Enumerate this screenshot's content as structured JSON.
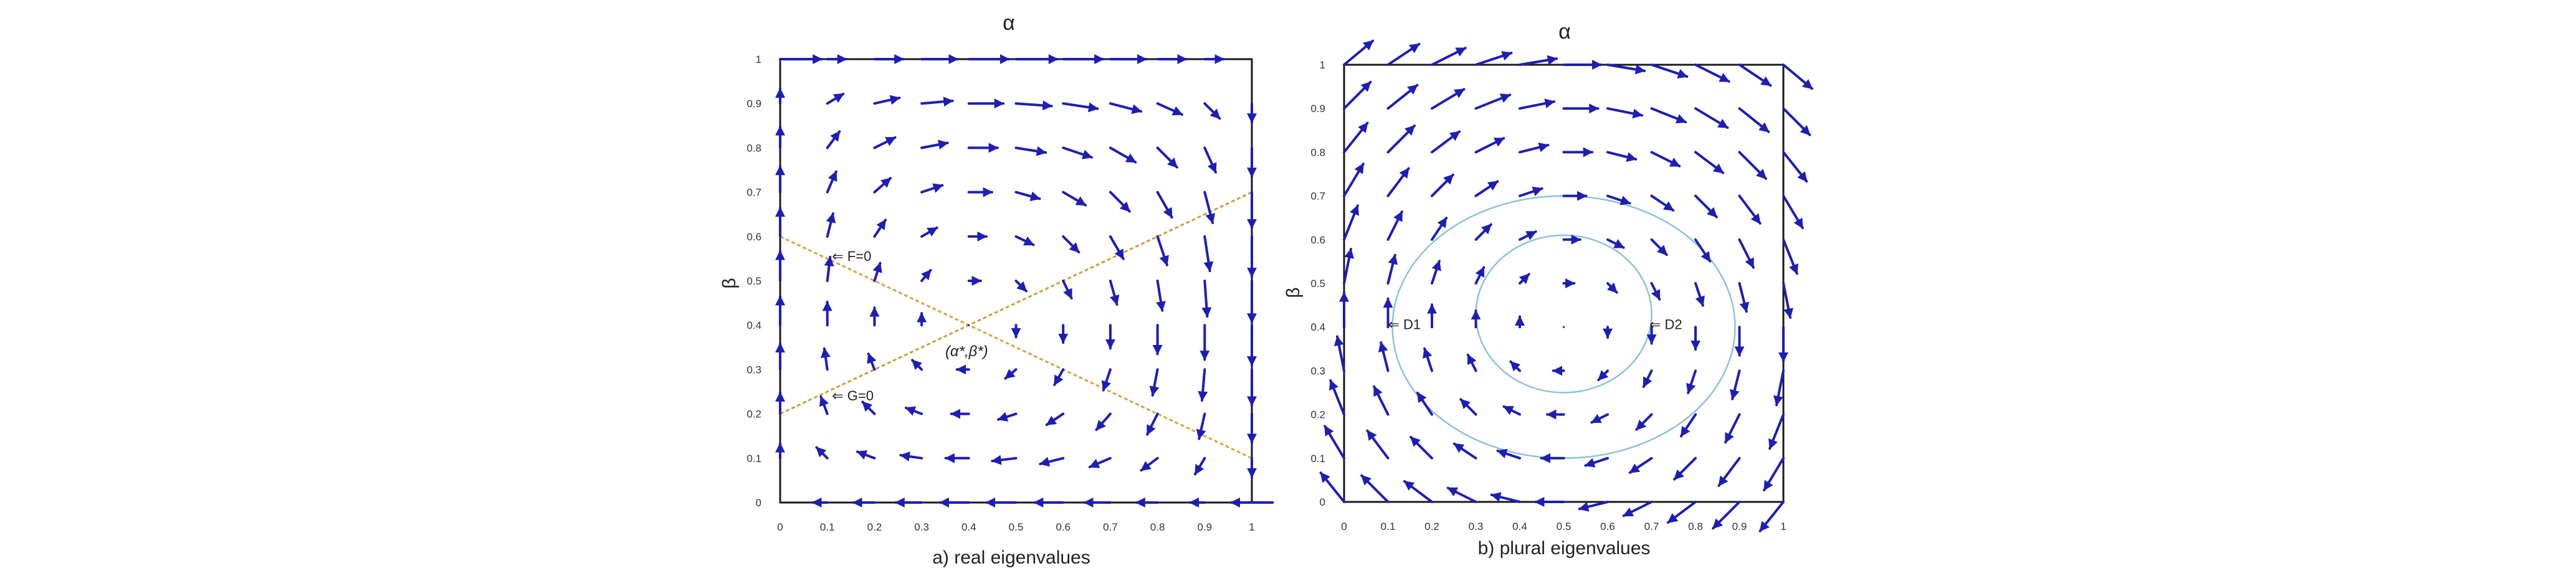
{
  "colors": {
    "arrow": "#1e1eb4",
    "frame": "#1a1a1a",
    "tick_text": "#333333",
    "label_text": "#222222",
    "line_f": "#d9a441",
    "line_g": "#c9a13a",
    "orbit": "#8cc2da"
  },
  "chart_data": [
    {
      "type": "scatter",
      "subtype": "vector-field",
      "title": "α",
      "xlabel": "",
      "ylabel": "β",
      "caption": "a) real eigenvalues",
      "xlim": [
        0,
        1
      ],
      "ylim": [
        0,
        1
      ],
      "xticks": [
        "0",
        "0.1",
        "0.2",
        "0.3",
        "0.4",
        "0.5",
        "0.6",
        "0.7",
        "0.8",
        "0.9",
        "1"
      ],
      "yticks": [
        "0",
        "0.1",
        "0.2",
        "0.3",
        "0.4",
        "0.5",
        "0.6",
        "0.7",
        "0.8",
        "0.9",
        "1"
      ],
      "grid": false,
      "field": {
        "model": "replicator",
        "equilibrium": [
          0.4,
          0.4
        ],
        "f_line": {
          "label": "⇐ F=0",
          "points": [
            [
              0,
              0.6
            ],
            [
              1,
              0.1
            ]
          ]
        },
        "g_line": {
          "label": "⇐ G=0",
          "points": [
            [
              0,
              0.2
            ],
            [
              1,
              0.7
            ]
          ]
        },
        "equilibrium_label": "(α*,β*)"
      }
    },
    {
      "type": "scatter",
      "subtype": "vector-field",
      "title": "α",
      "xlabel": "",
      "ylabel": "β",
      "caption": "b) plural eigenvalues",
      "xlim": [
        0,
        1
      ],
      "ylim": [
        0,
        1
      ],
      "xticks": [
        "0",
        "0.1",
        "0.2",
        "0.3",
        "0.4",
        "0.5",
        "0.6",
        "0.7",
        "0.8",
        "0.9",
        "1"
      ],
      "yticks": [
        "0",
        "0.1",
        "0.2",
        "0.3",
        "0.4",
        "0.5",
        "0.6",
        "0.7",
        "0.8",
        "0.9",
        "1"
      ],
      "grid": false,
      "field": {
        "model": "rotation",
        "center": [
          0.5,
          0.4
        ],
        "orbits": [
          {
            "label": "⇐ D1",
            "center": [
              0.5,
              0.4
            ],
            "rx": 0.39,
            "ry": 0.3
          },
          {
            "label": "⇐ D2",
            "center": [
              0.5,
              0.43
            ],
            "rx": 0.2,
            "ry": 0.18
          }
        ]
      }
    }
  ]
}
